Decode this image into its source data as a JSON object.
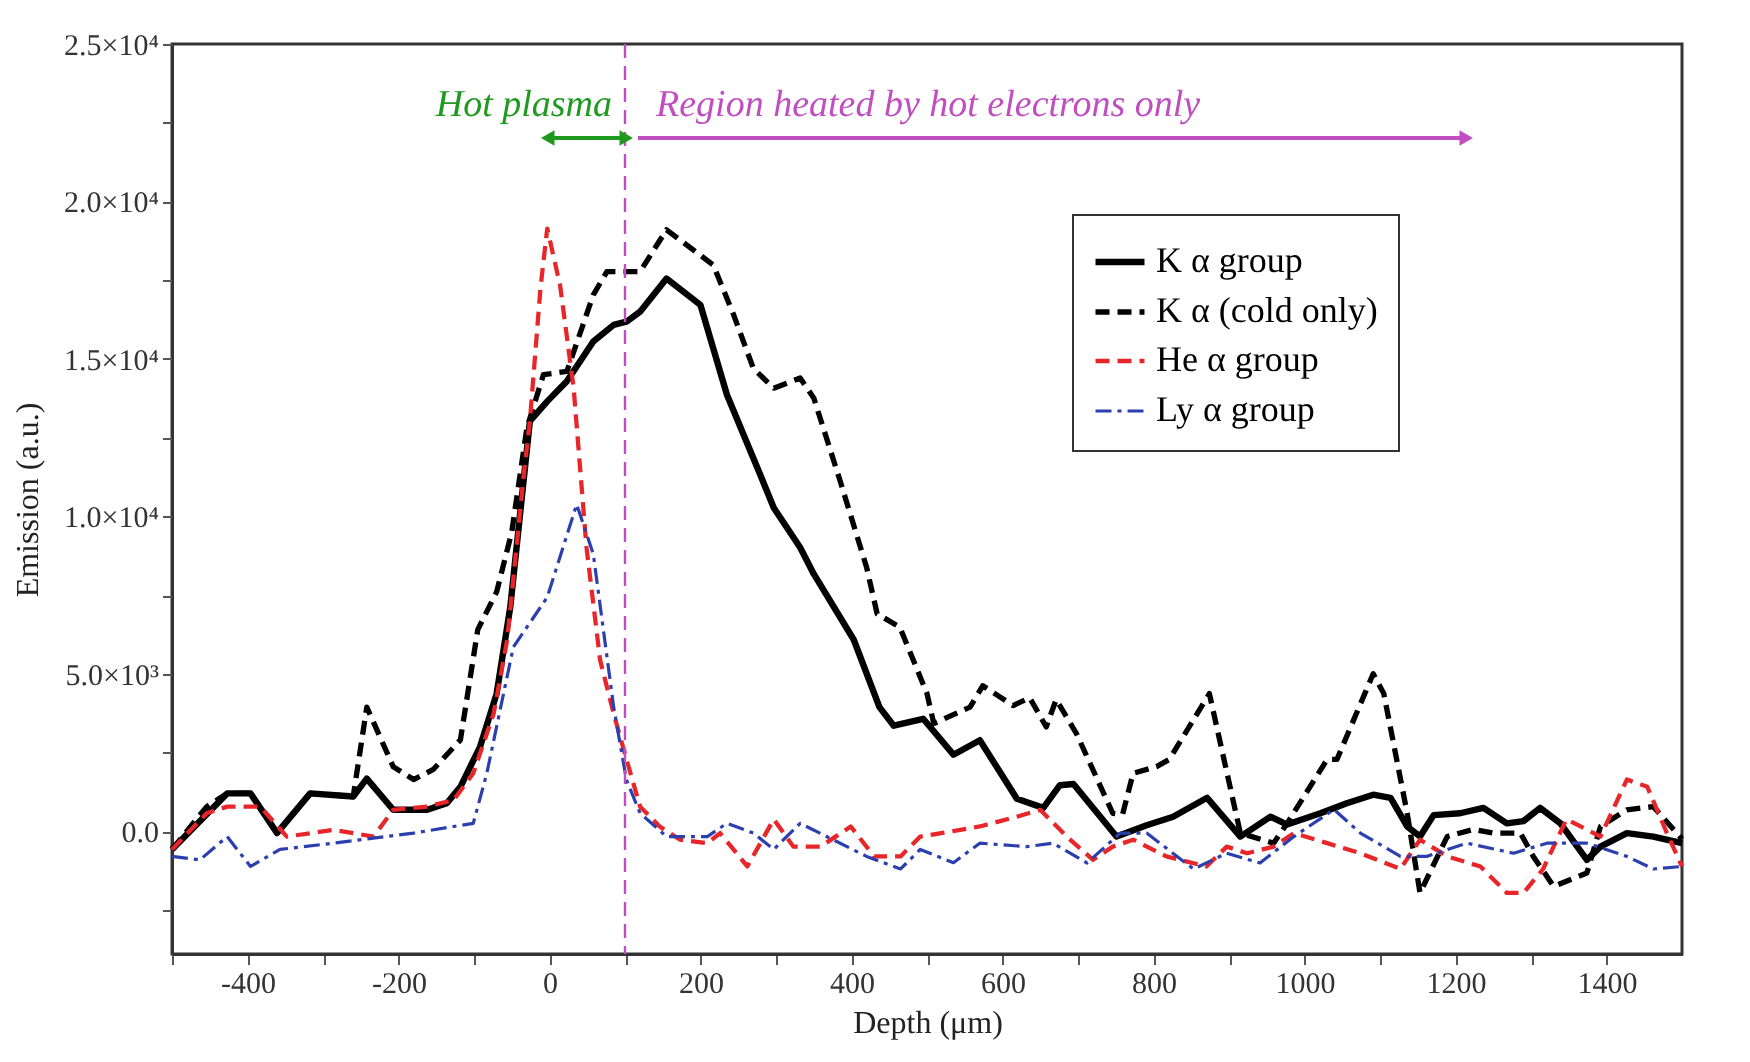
{
  "chart_data": {
    "type": "line",
    "xlabel": "Depth (μm)",
    "ylabel": "Emission (a.u.)",
    "xlim": [
      -500,
      1500
    ],
    "xticks": [
      {
        "value": -500,
        "label": null
      },
      -400,
      {
        "value": -300,
        "label": null
      },
      -200,
      {
        "value": -100,
        "label": null
      },
      0,
      {
        "value": 100,
        "label": null
      },
      200,
      {
        "value": 300,
        "label": null
      },
      400,
      {
        "value": 500,
        "label": null
      },
      600,
      {
        "value": 700,
        "label": null
      },
      800,
      {
        "value": 900,
        "label": null
      },
      1000,
      {
        "value": 1100,
        "label": null
      },
      1200,
      {
        "value": 1300,
        "label": null
      },
      1400
    ],
    "ylim": [
      -3900,
      25000
    ],
    "yticks": [
      {
        "value": -2500,
        "label": null
      },
      {
        "value": 0,
        "label": "0.0"
      },
      {
        "value": 2500,
        "label": null
      },
      {
        "value": 5000,
        "label": "5.0×10³"
      },
      {
        "value": 7500,
        "label": null
      },
      {
        "value": 10000,
        "label": "1.0×10⁴"
      },
      {
        "value": 12500,
        "label": null
      },
      {
        "value": 15000,
        "label": "1.5×10⁴"
      },
      {
        "value": 17500,
        "label": null
      },
      {
        "value": 20000,
        "label": "2.0×10⁴"
      },
      {
        "value": 22500,
        "label": null
      },
      {
        "value": 25000,
        "label": "2.5×10⁴"
      }
    ],
    "grid": false,
    "legend": "top right",
    "marker": "none",
    "series": [
      {
        "name": "K α group",
        "color": "#000000",
        "line_style": "solid",
        "x": [
          -500,
          -427,
          -396,
          -361,
          -317,
          -260,
          -242,
          -207,
          -162,
          -136,
          -118,
          -92,
          -70,
          -52,
          -26,
          -3,
          23,
          58,
          85,
          102,
          120,
          155,
          200,
          235,
          279,
          297,
          332,
          350,
          403,
          437,
          456,
          495,
          535,
          570,
          619,
          654,
          676,
          694,
          751,
          791,
          826,
          871,
          915,
          955,
          977,
          1021,
          1056,
          1091,
          1114,
          1136,
          1153,
          1171,
          1206,
          1237,
          1268,
          1290,
          1312,
          1339,
          1374,
          1392,
          1427,
          1462,
          1500
        ],
        "values": [
          -580,
          1200,
          1200,
          -60,
          1200,
          1100,
          1670,
          680,
          680,
          890,
          1410,
          2680,
          4370,
          7110,
          13020,
          13650,
          14290,
          15550,
          16080,
          16180,
          16500,
          17550,
          16710,
          13860,
          11330,
          10270,
          9010,
          8170,
          6080,
          3940,
          3350,
          3570,
          2430,
          2890,
          1030,
          740,
          1460,
          1500,
          -170,
          190,
          460,
          1060,
          -170,
          460,
          210,
          570,
          890,
          1160,
          1060,
          150,
          -170,
          510,
          570,
          740,
          250,
          320,
          740,
          250,
          -910,
          -490,
          -60,
          -170,
          -380
        ]
      },
      {
        "name": "K α (cold only)",
        "color": "#000000",
        "line_style": "dashed",
        "x": [
          -500,
          -454,
          -427,
          -396,
          -361,
          -317,
          -260,
          -242,
          -207,
          -180,
          -154,
          -118,
          -95,
          -70,
          -50,
          -30,
          -8,
          23,
          58,
          76,
          102,
          120,
          155,
          200,
          217,
          244,
          270,
          297,
          332,
          350,
          385,
          420,
          434,
          464,
          500,
          509,
          557,
          574,
          614,
          636,
          658,
          671,
          698,
          746,
          759,
          773,
          804,
          821,
          874,
          915,
          959,
          977,
          1030,
          1043,
          1091,
          1105,
          1136,
          1153,
          1189,
          1224,
          1250,
          1286,
          1303,
          1330,
          1374,
          1392,
          1427,
          1462,
          1500
        ],
        "values": [
          -580,
          780,
          1200,
          1200,
          -60,
          1200,
          1100,
          3940,
          2050,
          1640,
          1960,
          2900,
          6400,
          7600,
          9500,
          12800,
          14500,
          14600,
          17030,
          17770,
          17770,
          17770,
          19100,
          18290,
          17980,
          16390,
          14700,
          14070,
          14390,
          13760,
          11120,
          8380,
          6900,
          6480,
          4370,
          3420,
          3940,
          4620,
          3990,
          4240,
          3310,
          4180,
          3100,
          570,
          530,
          1840,
          2050,
          2280,
          4370,
          -60,
          -380,
          250,
          2280,
          2280,
          5000,
          4370,
          570,
          -1960,
          -170,
          60,
          -60,
          -60,
          -800,
          -1750,
          -1330,
          150,
          680,
          780,
          -250
        ]
      },
      {
        "name": "He α group",
        "color": "#e8262a",
        "line_style": "dashed",
        "x": [
          -500,
          -454,
          -427,
          -383,
          -348,
          -286,
          -233,
          -207,
          -162,
          -127,
          -101,
          -74,
          -56,
          -34,
          -26,
          -12,
          -3,
          14,
          32,
          49,
          67,
          85,
          102,
          120,
          146,
          173,
          209,
          226,
          262,
          297,
          323,
          359,
          399,
          430,
          465,
          491,
          544,
          570,
          619,
          650,
          685,
          720,
          746,
          773,
          817,
          870,
          897,
          924,
          959,
          986,
          1030,
          1074,
          1127,
          1153,
          1189,
          1233,
          1268,
          1290,
          1316,
          1347,
          1392,
          1427,
          1454,
          1480,
          1500
        ],
        "values": [
          -580,
          570,
          780,
          780,
          -170,
          40,
          -170,
          680,
          780,
          990,
          1840,
          3730,
          6080,
          11330,
          13020,
          17240,
          19140,
          17340,
          14070,
          9010,
          5440,
          3730,
          2280,
          780,
          150,
          -270,
          -380,
          -60,
          -1120,
          380,
          -490,
          -490,
          150,
          -800,
          -800,
          -170,
          40,
          150,
          460,
          680,
          -170,
          -910,
          -490,
          -270,
          -800,
          -1120,
          -490,
          -700,
          -490,
          -60,
          -380,
          -700,
          -1200,
          -270,
          -800,
          -1120,
          -1960,
          -1960,
          -1200,
          380,
          -170,
          1640,
          1410,
          -60,
          -1120
        ]
      },
      {
        "name": "Ly α group",
        "color": "#2b3fae",
        "line_style": "dotted",
        "x": [
          -500,
          -463,
          -427,
          -396,
          -357,
          -286,
          -216,
          -180,
          -127,
          -101,
          -83,
          -48,
          -3,
          36,
          58,
          85,
          102,
          120,
          155,
          209,
          235,
          270,
          297,
          332,
          367,
          420,
          465,
          491,
          535,
          570,
          632,
          667,
          712,
          756,
          791,
          853,
          897,
          941,
          986,
          1039,
          1074,
          1127,
          1162,
          1215,
          1277,
          1321,
          1374,
          1427,
          1462,
          1500
        ],
        "values": [
          -800,
          -910,
          -170,
          -1120,
          -580,
          -380,
          -170,
          -60,
          150,
          250,
          1840,
          5840,
          7430,
          10380,
          8800,
          3940,
          1620,
          570,
          -170,
          -170,
          250,
          -60,
          -580,
          250,
          -170,
          -800,
          -1200,
          -580,
          -1000,
          -380,
          -490,
          -380,
          -1010,
          -60,
          -60,
          -1200,
          -700,
          -1010,
          -170,
          690,
          -60,
          -800,
          -800,
          -380,
          -700,
          -380,
          -380,
          -800,
          -1200,
          -1120
        ]
      }
    ],
    "ref_lines": [
      {
        "axis": "x",
        "value": 100,
        "label": null,
        "color": "#c04ec0",
        "line_style": "dashed"
      }
    ],
    "annotations": [
      "Hot plasma",
      "Region heated by hot electrons only"
    ]
  }
}
